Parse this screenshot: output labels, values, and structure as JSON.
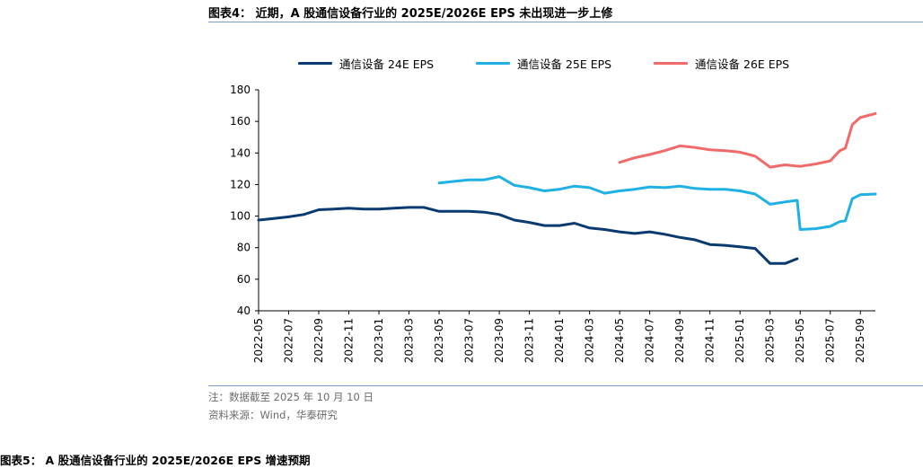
{
  "figure": {
    "title": "图表4：  近期，A 股通信设备行业的 2025E/2026E EPS 未出现进一步上修",
    "note": "注：数据截至 2025 年 10 月 10 日",
    "source": "资料来源：Wind，华泰研究",
    "cut_caption": "图表5：  A 股通信设备行业的 2025E/2026E EPS 增速预期"
  },
  "colors": {
    "series_24e": "#0b3a72",
    "series_25e": "#1fb0e4",
    "series_26e": "#f06a6a",
    "rule": "#7f9fc6"
  },
  "chart_data": {
    "type": "line",
    "title": "",
    "xlabel": "",
    "ylabel": "",
    "ylim": [
      40,
      180
    ],
    "yticks": [
      40,
      60,
      80,
      100,
      120,
      140,
      160,
      180
    ],
    "xlim": [
      "2022-05",
      "2025-10"
    ],
    "xticks": [
      "2022-05",
      "2022-07",
      "2022-09",
      "2022-11",
      "2023-01",
      "2023-03",
      "2023-05",
      "2023-07",
      "2023-09",
      "2023-11",
      "2024-01",
      "2024-03",
      "2024-05",
      "2024-07",
      "2024-09",
      "2024-11",
      "2025-01",
      "2025-03",
      "2025-05",
      "2025-07",
      "2025-09"
    ],
    "legend_position": "top",
    "grid": false,
    "series": [
      {
        "name": "通信设备 24E EPS",
        "color_key": "series_24e",
        "points": [
          [
            "2022-05",
            97.5
          ],
          [
            "2022-06",
            98.5
          ],
          [
            "2022-07",
            99.5
          ],
          [
            "2022-08",
            101
          ],
          [
            "2022-09",
            104
          ],
          [
            "2022-10",
            104.5
          ],
          [
            "2022-11",
            105
          ],
          [
            "2022-12",
            104.5
          ],
          [
            "2023-01",
            104.5
          ],
          [
            "2023-02",
            105
          ],
          [
            "2023-03",
            105.5
          ],
          [
            "2023-04",
            105.5
          ],
          [
            "2023-05",
            103
          ],
          [
            "2023-06",
            103
          ],
          [
            "2023-07",
            103
          ],
          [
            "2023-08",
            102.5
          ],
          [
            "2023-09",
            101
          ],
          [
            "2023-10",
            97.5
          ],
          [
            "2023-11",
            96
          ],
          [
            "2023-12",
            94
          ],
          [
            "2024-01",
            94
          ],
          [
            "2024-02",
            95.5
          ],
          [
            "2024-03",
            92.5
          ],
          [
            "2024-04",
            91.5
          ],
          [
            "2024-05",
            90
          ],
          [
            "2024-06",
            89
          ],
          [
            "2024-07",
            90
          ],
          [
            "2024-08",
            88.5
          ],
          [
            "2024-09",
            86.5
          ],
          [
            "2024-10",
            85
          ],
          [
            "2024-11",
            82
          ],
          [
            "2024-12",
            81.5
          ],
          [
            "2025-01",
            80.5
          ],
          [
            "2025-02",
            79.5
          ],
          [
            "2025-03",
            70
          ],
          [
            "2025-04",
            70
          ],
          [
            "2025-04-25",
            73
          ]
        ]
      },
      {
        "name": "通信设备 25E EPS",
        "color_key": "series_25e",
        "points": [
          [
            "2023-05",
            121
          ],
          [
            "2023-06",
            122
          ],
          [
            "2023-07",
            123
          ],
          [
            "2023-08",
            123
          ],
          [
            "2023-09",
            125
          ],
          [
            "2023-10",
            119.5
          ],
          [
            "2023-11",
            118
          ],
          [
            "2023-12",
            116
          ],
          [
            "2024-01",
            117
          ],
          [
            "2024-02",
            119
          ],
          [
            "2024-03",
            118
          ],
          [
            "2024-04",
            114.5
          ],
          [
            "2024-05",
            116
          ],
          [
            "2024-06",
            117
          ],
          [
            "2024-07",
            118.5
          ],
          [
            "2024-08",
            118
          ],
          [
            "2024-09",
            119
          ],
          [
            "2024-10",
            117.5
          ],
          [
            "2024-11",
            117
          ],
          [
            "2024-12",
            117
          ],
          [
            "2025-01",
            116
          ],
          [
            "2025-02",
            114
          ],
          [
            "2025-03",
            107.5
          ],
          [
            "2025-04",
            109
          ],
          [
            "2025-04-25",
            110
          ],
          [
            "2025-05",
            91.5
          ],
          [
            "2025-06",
            92
          ],
          [
            "2025-07",
            93.5
          ],
          [
            "2025-07-20",
            96.5
          ],
          [
            "2025-08",
            97
          ],
          [
            "2025-08-15",
            111
          ],
          [
            "2025-09",
            113.5
          ],
          [
            "2025-10",
            114
          ]
        ]
      },
      {
        "name": "通信设备 26E EPS",
        "color_key": "series_26e",
        "points": [
          [
            "2024-05",
            134
          ],
          [
            "2024-06",
            137
          ],
          [
            "2024-07",
            139
          ],
          [
            "2024-08",
            141.5
          ],
          [
            "2024-09",
            144.5
          ],
          [
            "2024-10",
            143.5
          ],
          [
            "2024-11",
            142
          ],
          [
            "2024-12",
            141.5
          ],
          [
            "2025-01",
            140.5
          ],
          [
            "2025-02",
            138
          ],
          [
            "2025-03",
            131
          ],
          [
            "2025-04",
            132.5
          ],
          [
            "2025-05",
            131.5
          ],
          [
            "2025-06",
            133
          ],
          [
            "2025-07",
            135
          ],
          [
            "2025-07-20",
            141.5
          ],
          [
            "2025-08",
            143
          ],
          [
            "2025-08-15",
            158
          ],
          [
            "2025-09",
            162.5
          ],
          [
            "2025-10",
            165
          ]
        ]
      }
    ]
  }
}
